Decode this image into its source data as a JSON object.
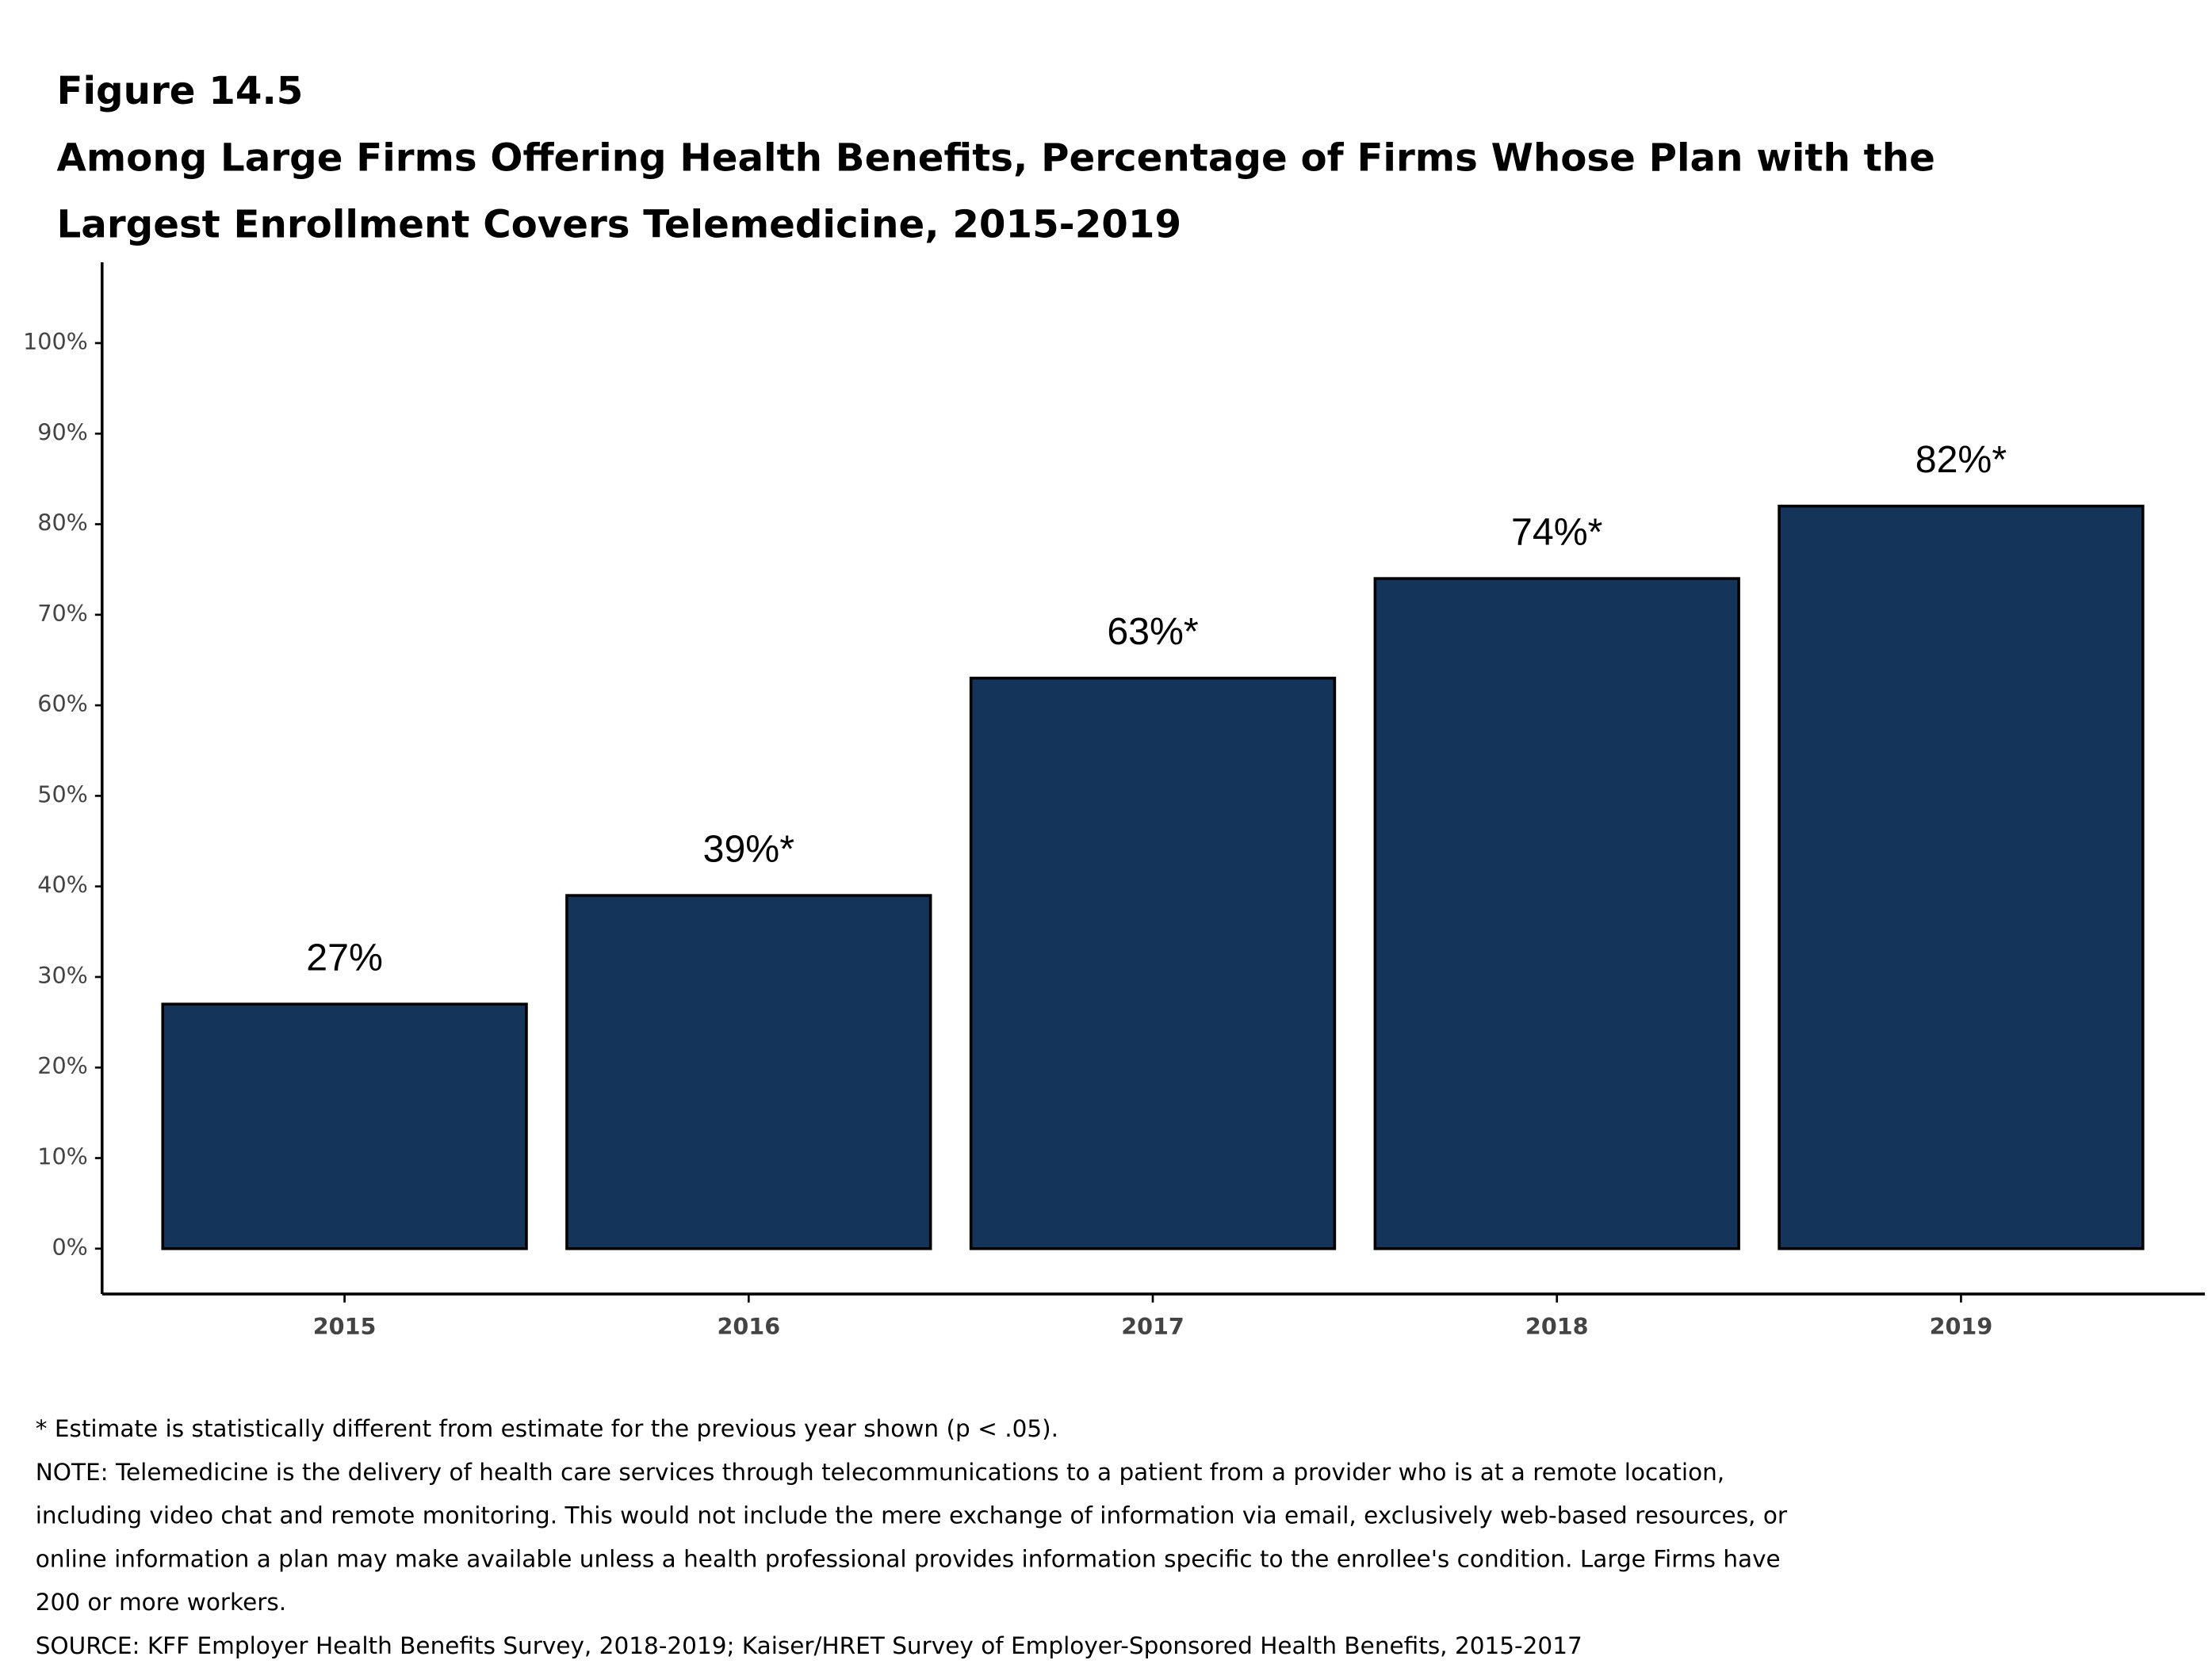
{
  "chart_data": {
    "type": "bar",
    "figure_label": "Figure 14.5",
    "title": [
      "Among Large Firms Offering Health Benefits, Percentage of Firms Whose Plan with the",
      "Largest Enrollment Covers Telemedicine, 2015-2019"
    ],
    "categories": [
      "2015",
      "2016",
      "2017",
      "2018",
      "2019"
    ],
    "values": [
      27,
      39,
      63,
      74,
      82
    ],
    "value_labels": [
      "27%",
      "39%*",
      "63%*",
      "74%*",
      "82%*"
    ],
    "color": "#15345a",
    "ylim": [
      -5,
      105
    ],
    "yticks": [
      {
        "value": 0,
        "label": "0%"
      },
      {
        "value": 10,
        "label": "10%"
      },
      {
        "value": 20,
        "label": "20%"
      },
      {
        "value": 30,
        "label": "30%"
      },
      {
        "value": 40,
        "label": "40%"
      },
      {
        "value": 50,
        "label": "50%"
      },
      {
        "value": 60,
        "label": "60%"
      },
      {
        "value": 70,
        "label": "70%"
      },
      {
        "value": 80,
        "label": "80%"
      },
      {
        "value": 90,
        "label": "90%"
      },
      {
        "value": 100,
        "label": "100%"
      }
    ],
    "grid": false,
    "notes": [
      "* Estimate is statistically different from estimate for the previous year shown (p < .05).",
      "NOTE: Telemedicine is the delivery of health care services through telecommunications to a patient from a provider who is at a remote location,",
      "including video chat and remote monitoring. This would not include the mere exchange of information via email, exclusively web-based resources, or",
      "online information a plan may make available unless a health professional provides information specific to the enrollee's condition. Large Firms have",
      "200 or more workers.",
      "SOURCE: KFF Employer Health Benefits Survey, 2018-2019; Kaiser/HRET Survey of Employer-Sponsored Health Benefits, 2015-2017"
    ]
  }
}
